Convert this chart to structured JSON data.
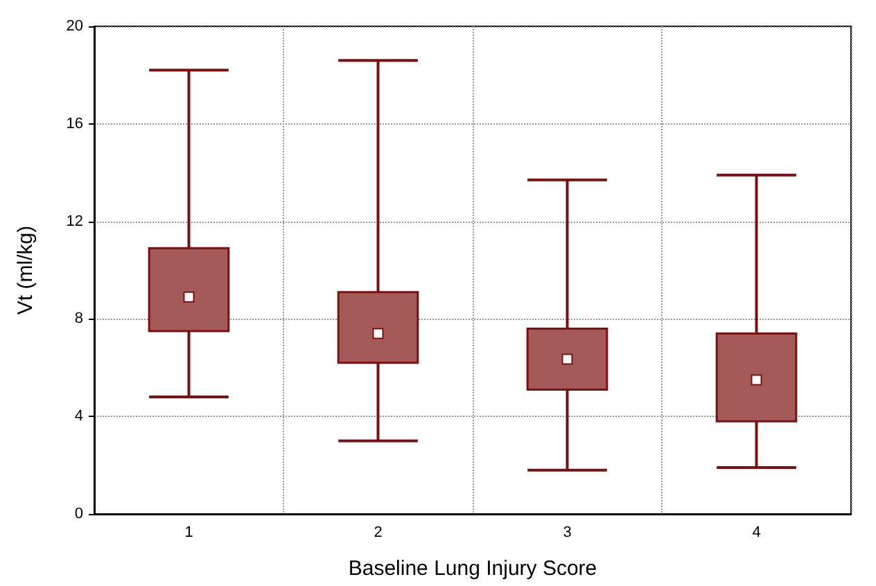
{
  "chart_data": {
    "type": "box",
    "xlabel": "Baseline Lung Injury Score",
    "ylabel": "Vt (ml/kg)",
    "categories": [
      "1",
      "2",
      "3",
      "4"
    ],
    "boxes": [
      {
        "low": 4.8,
        "q1": 7.5,
        "median": 8.9,
        "q3": 10.9,
        "high": 18.2
      },
      {
        "low": 3.0,
        "q1": 6.2,
        "median": 7.4,
        "q3": 9.1,
        "high": 18.6
      },
      {
        "low": 1.8,
        "q1": 5.1,
        "median": 6.35,
        "q3": 7.6,
        "high": 13.7
      },
      {
        "low": 1.9,
        "q1": 3.8,
        "median": 5.5,
        "q3": 7.4,
        "high": 13.9
      }
    ],
    "color": "#a55a5a",
    "ylim": [
      0,
      20
    ],
    "yticks": [
      0,
      4,
      8,
      12,
      16,
      20
    ],
    "grid": true,
    "marker": "square"
  }
}
